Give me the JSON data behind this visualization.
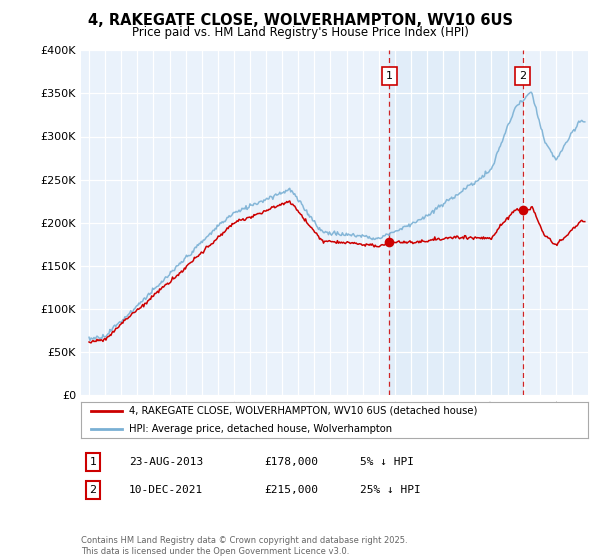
{
  "title_line1": "4, RAKEGATE CLOSE, WOLVERHAMPTON, WV10 6US",
  "title_line2": "Price paid vs. HM Land Registry's House Price Index (HPI)",
  "ylim": [
    0,
    400000
  ],
  "yticks": [
    0,
    50000,
    100000,
    150000,
    200000,
    250000,
    300000,
    350000,
    400000
  ],
  "hpi_color": "#7ab0d4",
  "price_color": "#cc0000",
  "shade_color": "#ddeeff",
  "annotation1_label": "1",
  "annotation1_date": "23-AUG-2013",
  "annotation1_price": "£178,000",
  "annotation1_hpi": "5% ↓ HPI",
  "annotation1_year": 2013.65,
  "annotation1_value": 178000,
  "annotation2_label": "2",
  "annotation2_date": "10-DEC-2021",
  "annotation2_price": "£215,000",
  "annotation2_hpi": "25% ↓ HPI",
  "annotation2_year": 2021.95,
  "annotation2_value": 215000,
  "legend_line1": "4, RAKEGATE CLOSE, WOLVERHAMPTON, WV10 6US (detached house)",
  "legend_line2": "HPI: Average price, detached house, Wolverhampton",
  "footer": "Contains HM Land Registry data © Crown copyright and database right 2025.\nThis data is licensed under the Open Government Licence v3.0.",
  "background_color": "#eaf2fb",
  "xlim_left": 1994.5,
  "xlim_right": 2026.0
}
